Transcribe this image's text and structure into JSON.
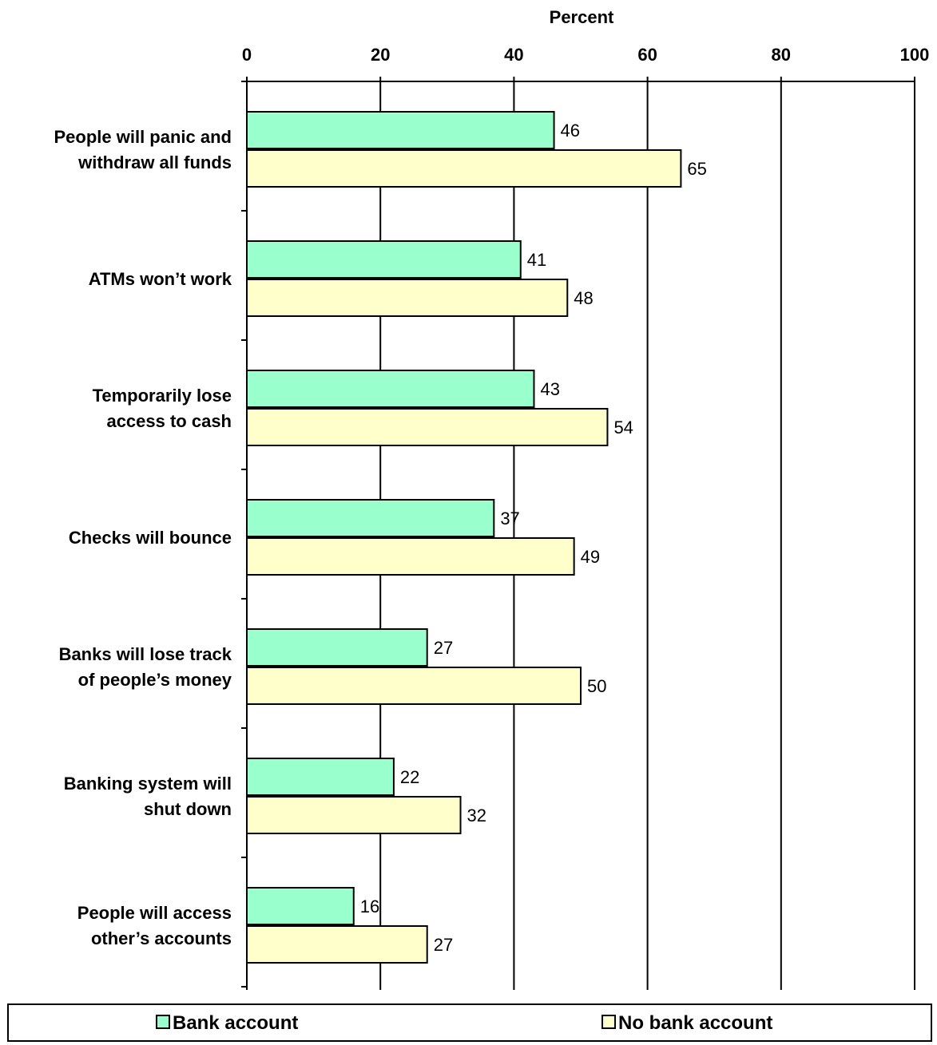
{
  "chart_data": {
    "type": "bar",
    "orientation": "horizontal",
    "xlabel": "Percent",
    "xlabel_position": "top",
    "xlim": [
      0,
      100
    ],
    "xticks": [
      0,
      20,
      40,
      60,
      80,
      100
    ],
    "grid": true,
    "legend_position": "bottom",
    "categories": [
      [
        "People will panic and",
        "withdraw all funds"
      ],
      [
        "ATMs won’t work"
      ],
      [
        "Temporarily lose",
        "access to cash"
      ],
      [
        "Checks will bounce"
      ],
      [
        "Banks will lose track",
        "of people’s money"
      ],
      [
        "Banking system will",
        "shut down"
      ],
      [
        "People will access",
        "other’s accounts"
      ]
    ],
    "series": [
      {
        "name": "Bank account",
        "color": "#99ffcc",
        "values": [
          46,
          41,
          43,
          37,
          27,
          22,
          16
        ]
      },
      {
        "name": "No bank account",
        "color": "#ffffcc",
        "values": [
          65,
          48,
          54,
          49,
          50,
          32,
          27
        ]
      }
    ]
  }
}
